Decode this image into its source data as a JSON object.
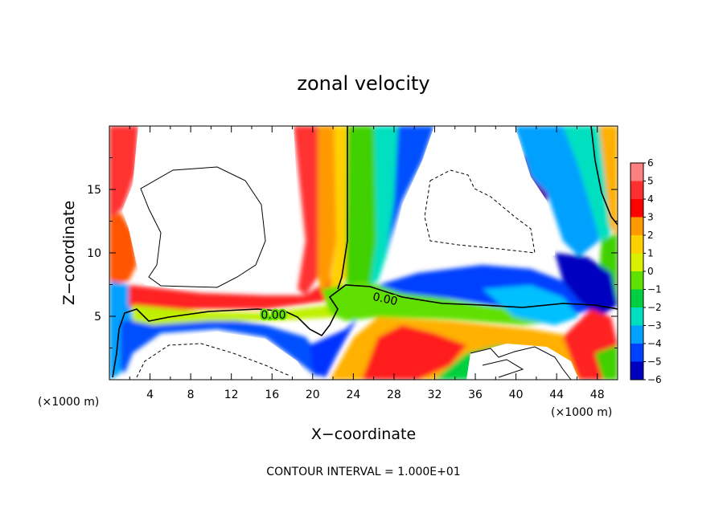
{
  "chart_data": {
    "type": "heatmap",
    "title": "zonal velocity",
    "xlabel": "X−coordinate",
    "ylabel": "Z−coordinate",
    "x_unit": "(×1000 m)",
    "y_unit": "(×1000 m)",
    "xlim": [
      0,
      50
    ],
    "ylim": [
      0,
      20
    ],
    "x_ticks": [
      "4",
      "8",
      "12",
      "16",
      "20",
      "24",
      "28",
      "32",
      "36",
      "40",
      "44",
      "48"
    ],
    "x_tick_values": [
      4,
      8,
      12,
      16,
      20,
      24,
      28,
      32,
      36,
      40,
      44,
      48
    ],
    "y_ticks": [
      "5",
      "10",
      "15"
    ],
    "y_tick_values": [
      5,
      10,
      15
    ],
    "colorbar": {
      "labels": [
        "6",
        "5",
        "4",
        "3",
        "2",
        "1",
        "0",
        "−1",
        "−2",
        "−3",
        "−4",
        "−5",
        "−6"
      ],
      "colors": [
        "#ff8080",
        "#ff3030",
        "#ff0000",
        "#ff9900",
        "#ffd000",
        "#d8f000",
        "#60e000",
        "#00d040",
        "#00e0c0",
        "#00a0ff",
        "#0040ff",
        "#0000c0",
        "#6600aa"
      ]
    },
    "contour_labels": [
      "0.00",
      "0.00"
    ],
    "footer": "CONTOUR INTERVAL = 1.000E+01"
  }
}
